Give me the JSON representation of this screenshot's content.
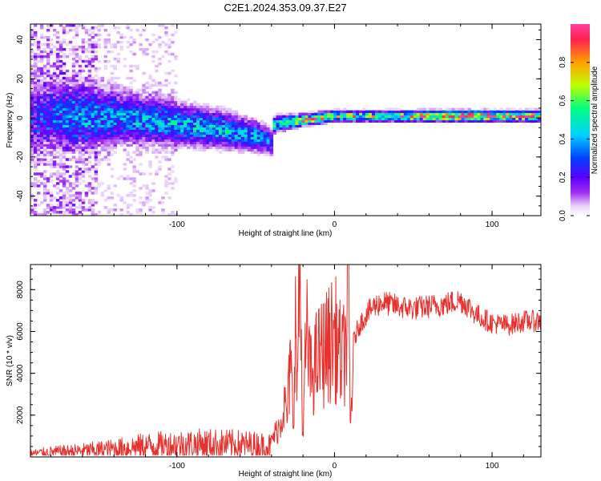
{
  "figure": {
    "title": "C2E1.2024.353.09.37.E27"
  },
  "colors": {
    "snr_line": "#e8302c",
    "colormap": [
      "#ffffff",
      "#e9d3fb",
      "#a030f0",
      "#5a00ff",
      "#0040ff",
      "#00d0ff",
      "#00ff80",
      "#c0ff00",
      "#ffa000",
      "#ff2050",
      "#ff40a0"
    ]
  },
  "chart_data": [
    {
      "type": "heatmap",
      "xlabel": "Height of straight line (km)",
      "ylabel": "Frequency (Hz)",
      "xlim": [
        -193,
        131
      ],
      "ylim": [
        -50,
        48
      ],
      "xticks": [
        -100,
        0,
        100
      ],
      "xtick_labels": [
        "-100",
        "0",
        "100"
      ],
      "yticks": [
        -40,
        -20,
        0,
        20,
        40
      ],
      "ytick_labels": [
        "-40",
        "-20",
        "0",
        "20",
        "40"
      ],
      "colorbar": {
        "label": "Normalized spectral amplitude",
        "range": [
          0,
          1
        ],
        "ticks": [
          0.0,
          0.2,
          0.4,
          0.6,
          0.8
        ],
        "tick_labels": [
          "0.0",
          "0.2",
          "0.4",
          "0.6",
          "0.8"
        ]
      },
      "trend": {
        "x": [
          -193,
          -160,
          -130,
          -100,
          -70,
          -50,
          -40,
          -38,
          -20,
          0,
          20,
          60,
          80,
          100,
          131
        ],
        "center_freq": [
          1,
          1,
          0,
          -3,
          -6,
          -9,
          -12,
          -3,
          -1,
          1,
          1,
          1,
          1,
          1,
          1
        ],
        "band_halfwidth": [
          14,
          12,
          9,
          8,
          7,
          6,
          5,
          3,
          2,
          2,
          2,
          2,
          2,
          2,
          2
        ],
        "peak_amplitude": [
          0.15,
          0.3,
          0.35,
          0.4,
          0.4,
          0.35,
          0.3,
          0.45,
          0.9,
          0.7,
          0.6,
          0.8,
          0.9,
          0.8,
          0.75
        ]
      }
    },
    {
      "type": "line",
      "xlabel": "Height of straight line (km)",
      "ylabel": "SNR (10 * v/v)",
      "xlim": [
        -193,
        131
      ],
      "ylim": [
        0,
        9200
      ],
      "xticks": [
        -100,
        0,
        100
      ],
      "xtick_labels": [
        "-100",
        "0",
        "100"
      ],
      "yticks": [
        2000,
        4000,
        6000,
        8000
      ],
      "ytick_labels": [
        "2000",
        "4000",
        "6000",
        "8000"
      ],
      "series": [
        {
          "x": [
            -193,
            -180,
            -160,
            -140,
            -120,
            -100,
            -80,
            -60,
            -40,
            -35,
            -32,
            -30,
            -28,
            -26,
            -25,
            -24,
            -22,
            -20,
            -18,
            -15,
            -12,
            -10,
            -5,
            0,
            5,
            8,
            9,
            10,
            12,
            15,
            20,
            25,
            30,
            40,
            50,
            60,
            70,
            80,
            85,
            90,
            100,
            110,
            120,
            131
          ],
          "y": [
            250,
            350,
            450,
            600,
            800,
            900,
            950,
            900,
            800,
            1500,
            2500,
            2000,
            4500,
            1500,
            7500,
            3000,
            9200,
            600,
            6000,
            3800,
            4500,
            4800,
            5200,
            5800,
            4500,
            6000,
            9000,
            1000,
            5500,
            6200,
            6800,
            7200,
            7400,
            7200,
            7100,
            7200,
            7300,
            7500,
            7200,
            6800,
            6400,
            6300,
            6500,
            6500
          ]
        }
      ]
    }
  ]
}
